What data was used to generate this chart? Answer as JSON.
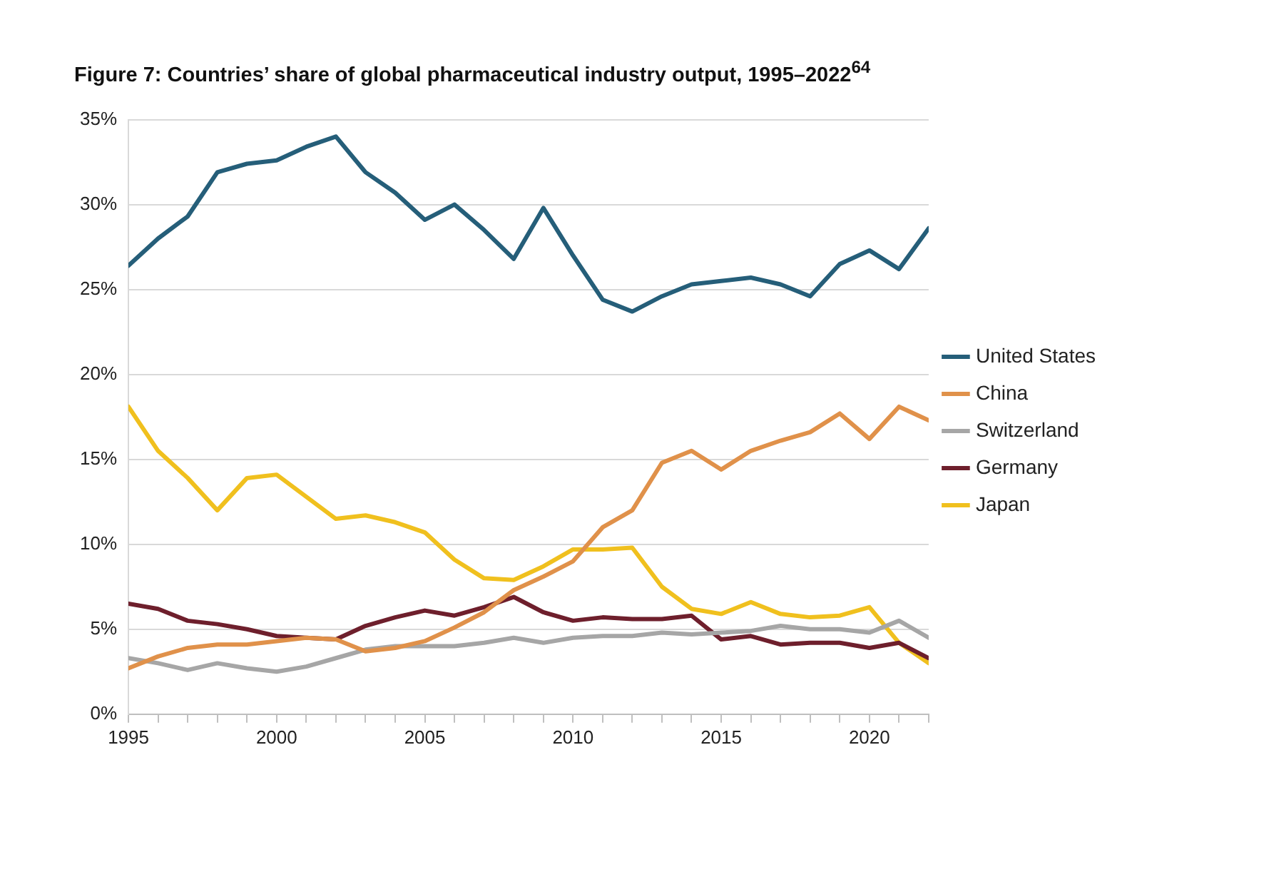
{
  "chart_data": {
    "type": "line",
    "title": "Figure 7: Countries’ share of global pharmaceutical industry output, 1995–2022$^{64}$",
    "x": [
      1995,
      1996,
      1997,
      1998,
      1999,
      2000,
      2001,
      2002,
      2003,
      2004,
      2005,
      2006,
      2007,
      2008,
      2009,
      2010,
      2011,
      2012,
      2013,
      2014,
      2015,
      2016,
      2017,
      2018,
      2019,
      2020,
      2021,
      2022
    ],
    "series": [
      {
        "name": "United States",
        "color": "#255e79",
        "values": [
          26.4,
          28,
          29.3,
          31.9,
          32.4,
          32.6,
          33.4,
          34,
          31.9,
          30.7,
          29.1,
          30,
          28.5,
          26.8,
          29.8,
          27,
          24.4,
          23.7,
          24.6,
          25.3,
          25.5,
          25.7,
          25.3,
          24.6,
          26.5,
          27.3,
          26.2,
          28.6
        ]
      },
      {
        "name": "China",
        "color": "#e0914a",
        "values": [
          2.7,
          3.4,
          3.9,
          4.1,
          4.1,
          4.3,
          4.5,
          4.4,
          3.7,
          3.9,
          4.3,
          5.1,
          6,
          7.3,
          8.1,
          9,
          11,
          12,
          14.8,
          15.5,
          14.4,
          15.5,
          16.1,
          16.6,
          17.7,
          16.2,
          18.1,
          17.3
        ]
      },
      {
        "name": "Switzerland",
        "color": "#a6a6a6",
        "values": [
          3.3,
          3,
          2.6,
          3,
          2.7,
          2.5,
          2.8,
          3.3,
          3.8,
          4,
          4,
          4,
          4.2,
          4.5,
          4.2,
          4.5,
          4.6,
          4.6,
          4.8,
          4.7,
          4.8,
          4.9,
          5.2,
          5,
          5,
          4.8,
          5.5,
          4.5
        ]
      },
      {
        "name": "Germany",
        "color": "#6e1f2c",
        "values": [
          6.5,
          6.2,
          5.5,
          5.3,
          5,
          4.6,
          4.5,
          4.4,
          5.2,
          5.7,
          6.1,
          5.8,
          6.3,
          6.9,
          6,
          5.5,
          5.7,
          5.6,
          5.6,
          5.8,
          4.4,
          4.6,
          4.1,
          4.2,
          4.2,
          3.9,
          4.2,
          3.3
        ]
      },
      {
        "name": "Japan",
        "color": "#f0c01e",
        "values": [
          18.1,
          15.5,
          13.9,
          12,
          13.9,
          14.1,
          12.8,
          11.5,
          11.7,
          11.3,
          10.7,
          9.1,
          8,
          7.9,
          8.7,
          9.7,
          9.7,
          9.8,
          7.5,
          6.2,
          5.9,
          6.6,
          5.9,
          5.7,
          5.8,
          6.3,
          4.2,
          3
        ]
      }
    ],
    "xlim": [
      1995,
      2022
    ],
    "xticks": [
      1995,
      {
        "value": 1996,
        "label": null
      },
      {
        "value": 1997,
        "label": null
      },
      {
        "value": 1998,
        "label": null
      },
      {
        "value": 1999,
        "label": null
      },
      2000,
      {
        "value": 2001,
        "label": null
      },
      {
        "value": 2002,
        "label": null
      },
      {
        "value": 2003,
        "label": null
      },
      {
        "value": 2004,
        "label": null
      },
      2005,
      {
        "value": 2006,
        "label": null
      },
      {
        "value": 2007,
        "label": null
      },
      {
        "value": 2008,
        "label": null
      },
      {
        "value": 2009,
        "label": null
      },
      2010,
      {
        "value": 2011,
        "label": null
      },
      {
        "value": 2012,
        "label": null
      },
      {
        "value": 2013,
        "label": null
      },
      {
        "value": 2014,
        "label": null
      },
      2015,
      {
        "value": 2016,
        "label": null
      },
      {
        "value": 2017,
        "label": null
      },
      {
        "value": 2018,
        "label": null
      },
      {
        "value": 2019,
        "label": null
      },
      2020,
      {
        "value": 2021,
        "label": null
      },
      {
        "value": 2022,
        "label": null
      }
    ],
    "ylim": [
      0,
      35
    ],
    "yticks": [
      {
        "value": 0,
        "label": "0%"
      },
      {
        "value": 5,
        "label": "5%"
      },
      {
        "value": 10,
        "label": "10%"
      },
      {
        "value": 15,
        "label": "15%"
      },
      {
        "value": 20,
        "label": "20%"
      },
      {
        "value": 25,
        "label": "25%"
      },
      {
        "value": 30,
        "label": "30%"
      },
      {
        "value": 35,
        "label": "35%"
      }
    ],
    "grid": "y",
    "legend": "right",
    "marker": "none",
    "line_style": "solid"
  }
}
